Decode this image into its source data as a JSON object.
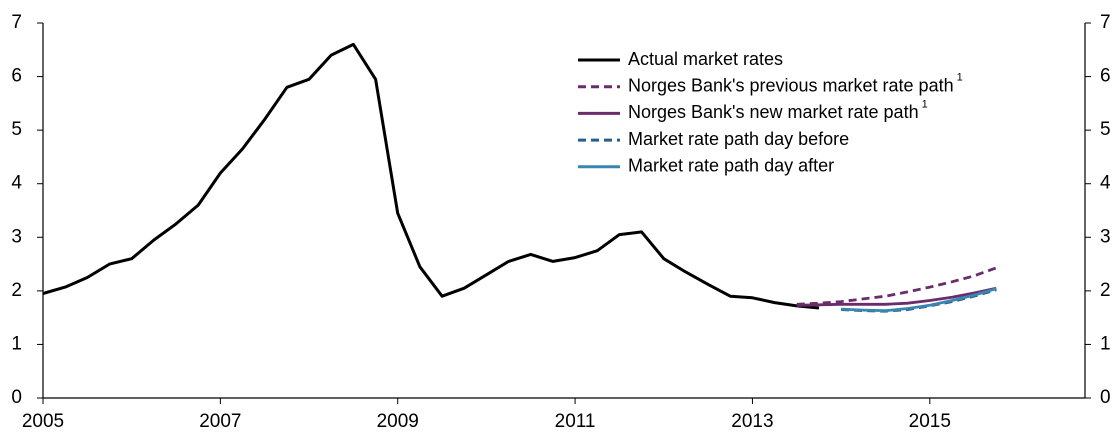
{
  "chart_data": {
    "type": "line",
    "xlim": [
      2005,
      2016.75
    ],
    "xticks": [
      2005,
      2007,
      2009,
      2011,
      2013,
      2015
    ],
    "ylim": [
      0,
      7
    ],
    "yticks": [
      0,
      1,
      2,
      3,
      4,
      5,
      6,
      7
    ],
    "y2lim": [
      0,
      7
    ],
    "y2ticks": [
      0,
      1,
      2,
      3,
      4,
      5,
      6,
      7
    ],
    "legend": "upper right",
    "series": [
      {
        "name": "Actual market rates",
        "color": "#000000",
        "dash": false,
        "x": [
          2005,
          2005.25,
          2005.5,
          2005.75,
          2006,
          2006.25,
          2006.5,
          2006.75,
          2007,
          2007.25,
          2007.5,
          2007.75,
          2008,
          2008.25,
          2008.5,
          2008.75,
          2009,
          2009.25,
          2009.5,
          2009.75,
          2010,
          2010.25,
          2010.5,
          2010.75,
          2011,
          2011.25,
          2011.5,
          2011.75,
          2012,
          2012.25,
          2012.5,
          2012.75,
          2013,
          2013.25,
          2013.5,
          2013.75
        ],
        "values": [
          1.95,
          2.07,
          2.25,
          2.5,
          2.6,
          2.95,
          3.25,
          3.6,
          4.2,
          4.65,
          5.2,
          5.8,
          5.95,
          6.4,
          6.6,
          5.95,
          3.45,
          2.45,
          1.9,
          2.05,
          2.3,
          2.55,
          2.68,
          2.55,
          2.62,
          2.75,
          3.05,
          3.1,
          2.6,
          2.35,
          2.12,
          1.9,
          1.87,
          1.78,
          1.72,
          1.68
        ]
      },
      {
        "name": "Norges Bank's previous market rate path",
        "note": "1",
        "color": "#6b2c6b",
        "dash": true,
        "x": [
          2013.5,
          2013.75,
          2014,
          2014.25,
          2014.5,
          2014.75,
          2015,
          2015.25,
          2015.5,
          2015.75
        ],
        "values": [
          1.75,
          1.77,
          1.8,
          1.85,
          1.9,
          1.98,
          2.07,
          2.17,
          2.28,
          2.43
        ]
      },
      {
        "name": "Norges Bank's new market rate path",
        "note": "1",
        "color": "#6b2c6b",
        "dash": false,
        "x": [
          2013.5,
          2013.75,
          2014,
          2014.25,
          2014.5,
          2014.75,
          2015,
          2015.25,
          2015.5,
          2015.75
        ],
        "values": [
          1.73,
          1.74,
          1.75,
          1.75,
          1.75,
          1.77,
          1.82,
          1.88,
          1.96,
          2.05
        ]
      },
      {
        "name": "Market rate path day before",
        "color": "#285f8c",
        "dash": true,
        "x": [
          2014,
          2014.25,
          2014.5,
          2014.75,
          2015,
          2015.25,
          2015.5,
          2015.75
        ],
        "values": [
          1.65,
          1.63,
          1.62,
          1.65,
          1.72,
          1.8,
          1.9,
          2.02
        ]
      },
      {
        "name": "Market rate path day after",
        "color": "#3a86b0",
        "dash": false,
        "x": [
          2014,
          2014.25,
          2014.5,
          2014.75,
          2015,
          2015.25,
          2015.5,
          2015.75
        ],
        "values": [
          1.66,
          1.64,
          1.63,
          1.67,
          1.73,
          1.82,
          1.92,
          2.04
        ]
      }
    ]
  }
}
